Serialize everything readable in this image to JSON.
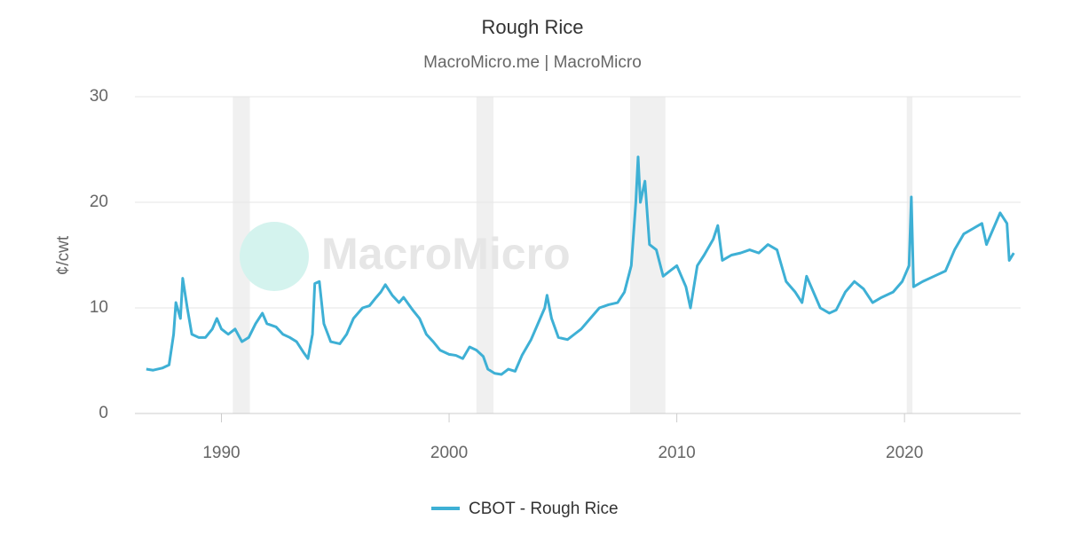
{
  "chart_data": {
    "type": "line",
    "title": "Rough Rice",
    "subtitle": "MacroMicro.me | MacroMicro",
    "watermark": "MacroMicro",
    "y_label": "¢/cwt",
    "xlim": [
      1986.2,
      2025.1
    ],
    "xticks": [
      1990,
      2000,
      2010,
      2020
    ],
    "ylim": [
      0,
      30
    ],
    "yticks": [
      0,
      10,
      20,
      30
    ],
    "grid": true,
    "legend": "bottom",
    "shaded_ranges": [
      [
        1990.5,
        1991.25
      ],
      [
        2001.2,
        2001.95
      ],
      [
        2007.95,
        2009.5
      ],
      [
        2020.1,
        2020.35
      ]
    ],
    "x": [
      1986.7,
      1987.0,
      1987.4,
      1987.7,
      1987.9,
      1988.0,
      1988.2,
      1988.3,
      1988.5,
      1988.7,
      1989.0,
      1989.3,
      1989.6,
      1989.8,
      1990.0,
      1990.3,
      1990.6,
      1990.9,
      1991.2,
      1991.5,
      1991.8,
      1992.0,
      1992.4,
      1992.7,
      1993.0,
      1993.3,
      1993.6,
      1993.8,
      1994.0,
      1994.1,
      1994.3,
      1994.5,
      1994.8,
      1995.2,
      1995.5,
      1995.8,
      1996.2,
      1996.5,
      1996.8,
      1997.0,
      1997.2,
      1997.5,
      1997.8,
      1998.0,
      1998.4,
      1998.7,
      1999.0,
      1999.3,
      1999.6,
      2000.0,
      2000.3,
      2000.6,
      2000.9,
      2001.2,
      2001.5,
      2001.7,
      2002.0,
      2002.3,
      2002.6,
      2002.9,
      2003.2,
      2003.6,
      2003.9,
      2004.2,
      2004.3,
      2004.5,
      2004.8,
      2005.2,
      2005.5,
      2005.8,
      2006.2,
      2006.6,
      2007.0,
      2007.4,
      2007.7,
      2008.0,
      2008.2,
      2008.3,
      2008.4,
      2008.6,
      2008.8,
      2009.1,
      2009.4,
      2009.7,
      2010.0,
      2010.4,
      2010.6,
      2010.9,
      2011.2,
      2011.6,
      2011.8,
      2012.0,
      2012.4,
      2012.8,
      2013.2,
      2013.6,
      2014.0,
      2014.4,
      2014.8,
      2015.2,
      2015.5,
      2015.7,
      2016.0,
      2016.3,
      2016.7,
      2017.0,
      2017.4,
      2017.8,
      2018.2,
      2018.6,
      2019.0,
      2019.5,
      2019.9,
      2020.2,
      2020.3,
      2020.4,
      2020.8,
      2021.3,
      2021.8,
      2022.2,
      2022.6,
      2023.0,
      2023.4,
      2023.6,
      2023.9,
      2024.2,
      2024.5,
      2024.6,
      2024.8
    ],
    "series": [
      {
        "name": "CBOT - Rough Rice",
        "color": "#3eb0d5",
        "values": [
          4.2,
          4.1,
          4.3,
          4.6,
          7.5,
          10.5,
          9.0,
          12.8,
          10.0,
          7.5,
          7.2,
          7.2,
          8.0,
          9.0,
          8.0,
          7.5,
          8.0,
          6.8,
          7.2,
          8.5,
          9.5,
          8.5,
          8.2,
          7.5,
          7.2,
          6.8,
          5.8,
          5.2,
          7.5,
          12.3,
          12.5,
          8.5,
          6.8,
          6.6,
          7.5,
          9.0,
          10.0,
          10.2,
          11.0,
          11.5,
          12.2,
          11.2,
          10.5,
          11.0,
          9.8,
          9.0,
          7.5,
          6.8,
          6.0,
          5.6,
          5.5,
          5.2,
          6.3,
          6.0,
          5.4,
          4.2,
          3.8,
          3.7,
          4.2,
          4.0,
          5.5,
          7.0,
          8.5,
          10.0,
          11.2,
          9.0,
          7.2,
          7.0,
          7.5,
          8.0,
          9.0,
          10.0,
          10.3,
          10.5,
          11.5,
          14.0,
          20.0,
          24.3,
          20.0,
          22.0,
          16.0,
          15.5,
          13.0,
          13.5,
          14.0,
          12.0,
          10.0,
          14.0,
          15.0,
          16.5,
          17.8,
          14.5,
          15.0,
          15.2,
          15.5,
          15.2,
          16.0,
          15.5,
          12.5,
          11.5,
          10.5,
          13.0,
          11.5,
          10.0,
          9.5,
          9.8,
          11.5,
          12.5,
          11.8,
          10.5,
          11.0,
          11.5,
          12.5,
          14.0,
          20.5,
          12.0,
          12.5,
          13.0,
          13.5,
          15.5,
          17.0,
          17.5,
          18.0,
          16.0,
          17.5,
          19.0,
          18.0,
          14.5,
          15.2
        ]
      }
    ]
  }
}
